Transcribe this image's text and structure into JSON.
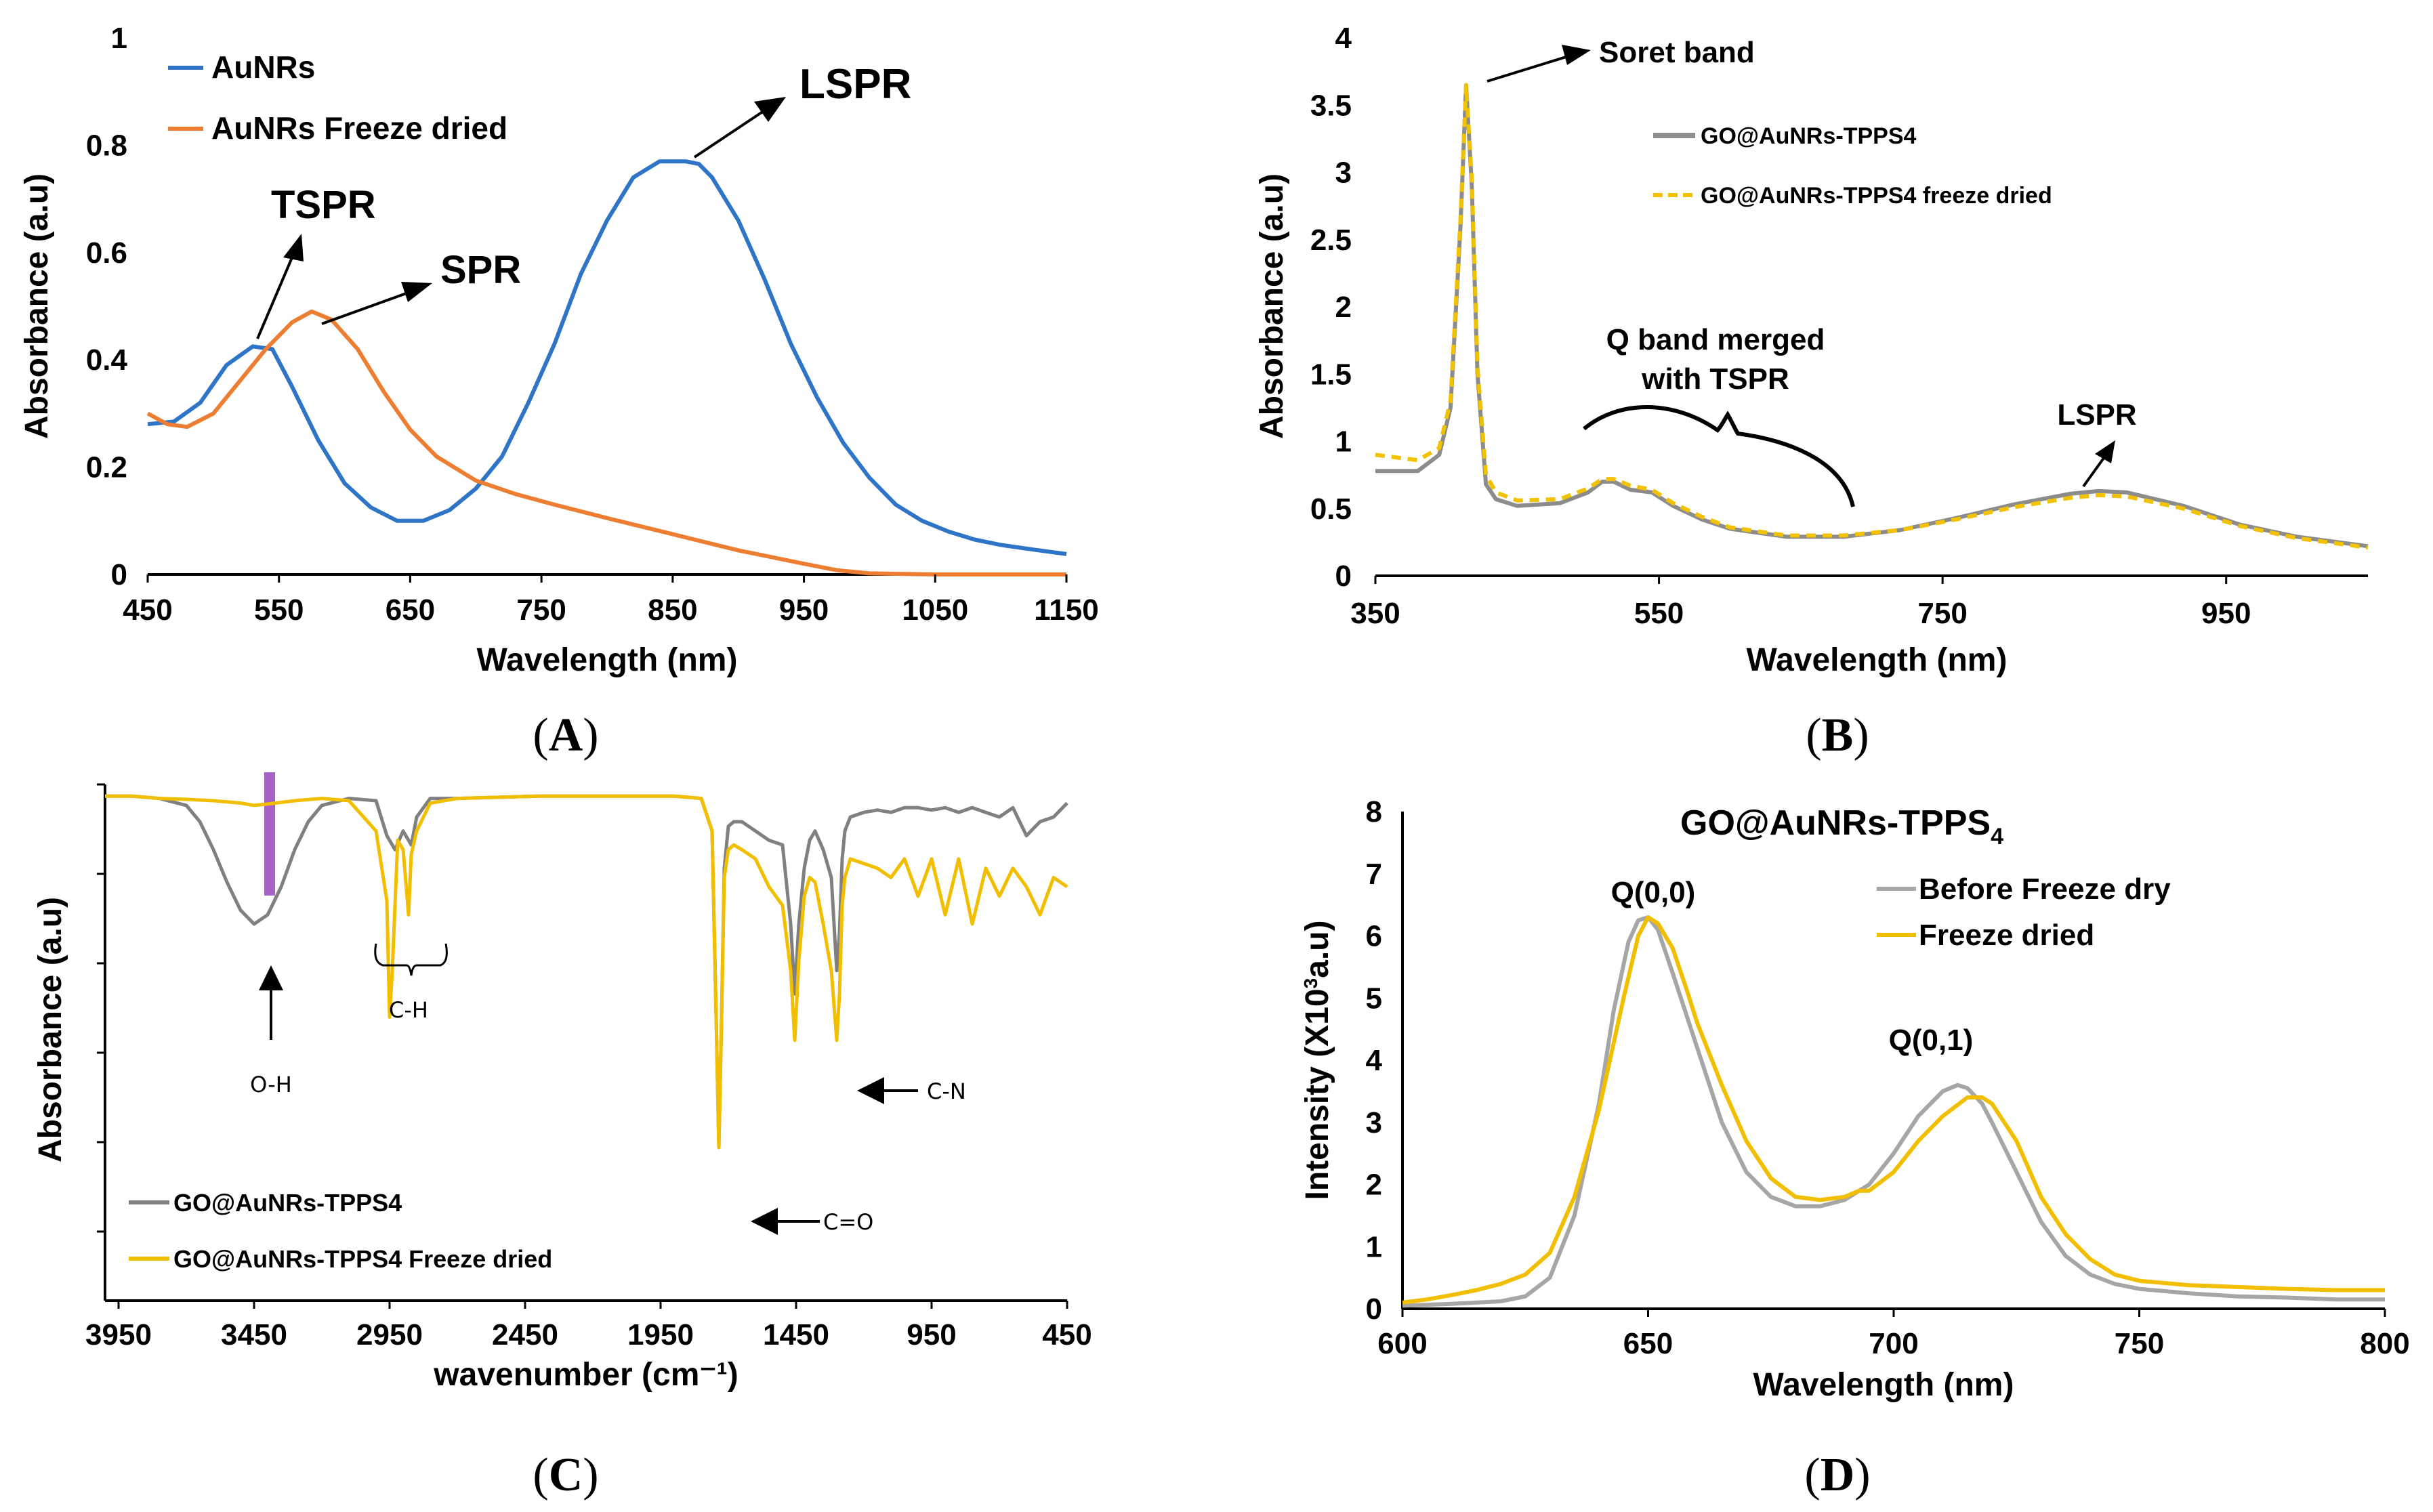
{
  "chart_data": [
    {
      "id": "A",
      "type": "line",
      "panel_label": "A",
      "xlabel": "Wavelength (nm)",
      "ylabel": "Absorbance (a.u)",
      "xlim": [
        450,
        1150
      ],
      "ylim": [
        0,
        1
      ],
      "xticks": [
        "450",
        "550",
        "650",
        "750",
        "850",
        "950",
        "1050",
        "1150"
      ],
      "yticks": [
        "0",
        "0.2",
        "0.4",
        "0.6",
        "0.8",
        "1"
      ],
      "series": [
        {
          "name": "AuNRs",
          "color": "#2E75C8",
          "dash": "",
          "x": [
            450,
            470,
            490,
            510,
            530,
            545,
            560,
            580,
            600,
            620,
            640,
            660,
            680,
            700,
            720,
            740,
            760,
            780,
            800,
            820,
            840,
            860,
            870,
            880,
            900,
            920,
            940,
            960,
            980,
            1000,
            1020,
            1040,
            1060,
            1080,
            1100,
            1120,
            1150
          ],
          "y": [
            0.28,
            0.285,
            0.32,
            0.39,
            0.425,
            0.42,
            0.35,
            0.25,
            0.17,
            0.125,
            0.1,
            0.1,
            0.12,
            0.16,
            0.22,
            0.32,
            0.43,
            0.56,
            0.66,
            0.74,
            0.77,
            0.77,
            0.765,
            0.74,
            0.66,
            0.55,
            0.43,
            0.33,
            0.245,
            0.18,
            0.13,
            0.1,
            0.08,
            0.065,
            0.055,
            0.048,
            0.038
          ]
        },
        {
          "name": "AuNRs Freeze dried",
          "color": "#ED7D31",
          "dash": "",
          "x": [
            450,
            465,
            480,
            500,
            520,
            540,
            560,
            575,
            590,
            610,
            630,
            650,
            670,
            700,
            730,
            760,
            800,
            850,
            900,
            950,
            975,
            1000,
            1050,
            1100,
            1150
          ],
          "y": [
            0.3,
            0.28,
            0.275,
            0.3,
            0.36,
            0.42,
            0.47,
            0.49,
            0.475,
            0.42,
            0.34,
            0.27,
            0.22,
            0.175,
            0.15,
            0.13,
            0.105,
            0.075,
            0.045,
            0.02,
            0.008,
            0.002,
            0.0,
            0.0,
            0.0
          ]
        }
      ],
      "annotations": [
        "LSPR",
        "TSPR",
        "SPR"
      ]
    },
    {
      "id": "B",
      "type": "line",
      "panel_label": "B",
      "xlabel": "Wavelength (nm)",
      "ylabel": "Absorbance (a.u)",
      "xlim": [
        350,
        1050
      ],
      "ylim": [
        0,
        4
      ],
      "xticks": [
        "350",
        "550",
        "750",
        "950"
      ],
      "yticks": [
        "0",
        "0.5",
        "1",
        "1.5",
        "2",
        "2.5",
        "3",
        "3.5",
        "4"
      ],
      "series": [
        {
          "name": "GO@AuNRs-TPPS4",
          "color": "#8C8C8C",
          "dash": "",
          "x": [
            350,
            380,
            395,
            403,
            410,
            414,
            418,
            422,
            428,
            435,
            450,
            480,
            500,
            510,
            518,
            530,
            545,
            560,
            580,
            600,
            640,
            680,
            720,
            760,
            800,
            840,
            860,
            880,
            920,
            960,
            1000,
            1050
          ],
          "y": [
            0.78,
            0.78,
            0.9,
            1.25,
            2.6,
            3.65,
            2.9,
            1.5,
            0.68,
            0.57,
            0.52,
            0.54,
            0.62,
            0.7,
            0.7,
            0.64,
            0.62,
            0.52,
            0.42,
            0.35,
            0.29,
            0.29,
            0.34,
            0.43,
            0.53,
            0.61,
            0.63,
            0.62,
            0.52,
            0.38,
            0.29,
            0.22
          ]
        },
        {
          "name": "GO@AuNRs-TPPS4 freeze dried",
          "color": "#F2C200",
          "dash": "14,10",
          "x": [
            350,
            380,
            395,
            403,
            410,
            414,
            418,
            422,
            428,
            435,
            450,
            480,
            500,
            510,
            518,
            530,
            545,
            560,
            580,
            600,
            640,
            680,
            720,
            760,
            800,
            840,
            860,
            880,
            920,
            960,
            1000,
            1050
          ],
          "y": [
            0.9,
            0.86,
            0.95,
            1.3,
            2.65,
            3.65,
            2.95,
            1.55,
            0.75,
            0.62,
            0.56,
            0.57,
            0.65,
            0.72,
            0.72,
            0.67,
            0.64,
            0.54,
            0.44,
            0.36,
            0.3,
            0.3,
            0.34,
            0.42,
            0.51,
            0.58,
            0.6,
            0.59,
            0.5,
            0.37,
            0.28,
            0.21
          ]
        }
      ],
      "annotations": [
        "Soret band",
        "Q band merged",
        "with TSPR",
        "LSPR"
      ]
    },
    {
      "id": "C",
      "type": "line",
      "panel_label": "C",
      "xlabel": "wavenumber (cm⁻¹)",
      "ylabel": "Absorbance (a.u)",
      "xlim": [
        4000,
        450
      ],
      "ylim": [
        0,
        1
      ],
      "xticks": [
        "3950",
        "3450",
        "2950",
        "2450",
        "1950",
        "1450",
        "950",
        "450"
      ],
      "series": [
        {
          "name": "GO@AuNRs-TPPS4",
          "color": "#808080",
          "dash": "",
          "x": [
            4000,
            3900,
            3800,
            3700,
            3650,
            3600,
            3550,
            3500,
            3450,
            3400,
            3350,
            3300,
            3250,
            3200,
            3100,
            3000,
            2960,
            2930,
            2900,
            2870,
            2850,
            2800,
            2700,
            2400,
            2100,
            1900,
            1800,
            1760,
            1745,
            1735,
            1725,
            1715,
            1700,
            1680,
            1650,
            1600,
            1550,
            1500,
            1470,
            1455,
            1440,
            1420,
            1400,
            1380,
            1350,
            1320,
            1300,
            1290,
            1280,
            1270,
            1250,
            1200,
            1150,
            1100,
            1050,
            1000,
            950,
            900,
            850,
            800,
            750,
            700,
            650,
            600,
            550,
            500,
            450
          ],
          "y": [
            0.975,
            0.975,
            0.97,
            0.955,
            0.92,
            0.86,
            0.79,
            0.73,
            0.7,
            0.72,
            0.78,
            0.86,
            0.92,
            0.955,
            0.97,
            0.965,
            0.89,
            0.86,
            0.9,
            0.87,
            0.93,
            0.97,
            0.97,
            0.975,
            0.975,
            0.975,
            0.97,
            0.9,
            0.5,
            0.22,
            0.5,
            0.82,
            0.91,
            0.92,
            0.92,
            0.9,
            0.88,
            0.87,
            0.7,
            0.55,
            0.7,
            0.82,
            0.88,
            0.9,
            0.86,
            0.8,
            0.6,
            0.68,
            0.84,
            0.9,
            0.93,
            0.94,
            0.945,
            0.94,
            0.95,
            0.95,
            0.945,
            0.95,
            0.94,
            0.95,
            0.94,
            0.93,
            0.95,
            0.89,
            0.92,
            0.93,
            0.96
          ]
        },
        {
          "name": "GO@AuNRs-TPPS4 Freeze dried",
          "color": "#F2BE00",
          "dash": "",
          "x": [
            4000,
            3900,
            3800,
            3700,
            3600,
            3500,
            3450,
            3400,
            3300,
            3200,
            3100,
            3000,
            2960,
            2950,
            2940,
            2920,
            2900,
            2880,
            2870,
            2850,
            2800,
            2700,
            2400,
            2100,
            1900,
            1800,
            1760,
            1745,
            1735,
            1725,
            1715,
            1700,
            1680,
            1650,
            1600,
            1550,
            1500,
            1470,
            1455,
            1440,
            1420,
            1400,
            1380,
            1350,
            1320,
            1300,
            1290,
            1280,
            1270,
            1250,
            1200,
            1150,
            1100,
            1050,
            1000,
            950,
            900,
            850,
            800,
            750,
            700,
            650,
            600,
            550,
            500,
            450
          ],
          "y": [
            0.975,
            0.975,
            0.97,
            0.968,
            0.965,
            0.96,
            0.955,
            0.958,
            0.965,
            0.97,
            0.965,
            0.9,
            0.75,
            0.5,
            0.6,
            0.88,
            0.86,
            0.72,
            0.85,
            0.9,
            0.96,
            0.97,
            0.975,
            0.975,
            0.975,
            0.97,
            0.9,
            0.5,
            0.22,
            0.5,
            0.8,
            0.86,
            0.87,
            0.86,
            0.84,
            0.78,
            0.74,
            0.6,
            0.45,
            0.62,
            0.76,
            0.8,
            0.79,
            0.7,
            0.6,
            0.45,
            0.55,
            0.74,
            0.8,
            0.84,
            0.83,
            0.82,
            0.8,
            0.84,
            0.76,
            0.84,
            0.72,
            0.84,
            0.7,
            0.82,
            0.76,
            0.82,
            0.78,
            0.72,
            0.8,
            0.78
          ]
        }
      ],
      "annotations": [
        "O-H",
        "C-H",
        "C-N",
        "C=O"
      ]
    },
    {
      "id": "D",
      "type": "line",
      "panel_label": "D",
      "title_main": "GO@AuNRs-TPPS",
      "title_sub": "4",
      "xlabel": "Wavelength (nm)",
      "ylabel_pre": "Intensity (X10",
      "ylabel_sup": "3",
      "ylabel_post": "a.u)",
      "xlim": [
        600,
        800
      ],
      "ylim": [
        0,
        8
      ],
      "xticks": [
        "600",
        "650",
        "700",
        "750",
        "800"
      ],
      "yticks": [
        "0",
        "1",
        "2",
        "3",
        "4",
        "5",
        "6",
        "7",
        "8"
      ],
      "series": [
        {
          "name": "Before Freeze dry",
          "color": "#A6A6A6",
          "dash": "",
          "x": [
            600,
            610,
            620,
            625,
            630,
            635,
            640,
            643,
            646,
            648,
            650,
            652,
            655,
            660,
            665,
            670,
            675,
            680,
            685,
            690,
            695,
            700,
            705,
            710,
            713,
            715,
            718,
            720,
            725,
            730,
            735,
            740,
            745,
            750,
            760,
            770,
            780,
            790,
            800
          ],
          "y": [
            0.05,
            0.08,
            0.12,
            0.2,
            0.5,
            1.5,
            3.3,
            4.8,
            5.9,
            6.25,
            6.3,
            6.1,
            5.4,
            4.2,
            3.0,
            2.2,
            1.8,
            1.65,
            1.65,
            1.75,
            2.0,
            2.5,
            3.1,
            3.5,
            3.6,
            3.55,
            3.3,
            3.0,
            2.2,
            1.4,
            0.85,
            0.55,
            0.4,
            0.32,
            0.25,
            0.2,
            0.18,
            0.15,
            0.15
          ]
        },
        {
          "name": "Freeze dried",
          "color": "#F2BE00",
          "dash": "",
          "x": [
            600,
            605,
            610,
            615,
            620,
            625,
            630,
            635,
            640,
            645,
            648,
            650,
            652,
            655,
            658,
            660,
            665,
            670,
            675,
            680,
            685,
            690,
            693,
            695,
            700,
            705,
            710,
            715,
            718,
            720,
            725,
            730,
            735,
            740,
            745,
            750,
            760,
            770,
            780,
            790,
            800
          ],
          "y": [
            0.1,
            0.15,
            0.22,
            0.3,
            0.4,
            0.55,
            0.9,
            1.8,
            3.2,
            5.0,
            6.0,
            6.3,
            6.2,
            5.8,
            5.1,
            4.6,
            3.6,
            2.7,
            2.1,
            1.8,
            1.75,
            1.8,
            1.9,
            1.9,
            2.2,
            2.7,
            3.1,
            3.4,
            3.4,
            3.3,
            2.7,
            1.8,
            1.2,
            0.8,
            0.55,
            0.45,
            0.38,
            0.35,
            0.32,
            0.3,
            0.3
          ]
        }
      ],
      "annotations": [
        "Q(0,0)",
        "Q(0,1)"
      ]
    }
  ]
}
